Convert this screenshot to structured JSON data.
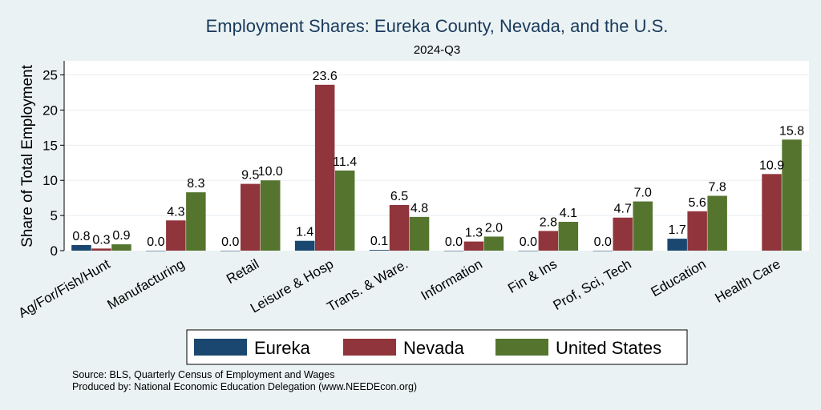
{
  "chart_data": {
    "type": "bar",
    "title": "Employment Shares: Eureka County, Nevada, and the U.S.",
    "subtitle": "2024-Q3",
    "xlabel": "",
    "ylabel": "Share of Total Employment",
    "ylim": [
      0,
      27
    ],
    "yticks": [
      0,
      5,
      10,
      15,
      20,
      25
    ],
    "grid": true,
    "legend_position": "bottom",
    "categories": [
      "Ag/For/Fish/Hunt",
      "Manufacturing",
      "Retail",
      "Leisure & Hosp",
      "Trans. & Ware.",
      "Information",
      "Fin & Ins",
      "Prof, Sci, Tech",
      "Education",
      "Health Care"
    ],
    "series": [
      {
        "name": "Eureka",
        "color": "#1a476f",
        "values": [
          0.8,
          0.0,
          0.0,
          1.4,
          0.1,
          0.0,
          0.0,
          0.0,
          1.7,
          null
        ],
        "labels": [
          "0.8",
          "0.0",
          "0.0",
          "1.4",
          "0.1",
          "0.0",
          "0.0",
          "0.0",
          "1.7",
          ""
        ]
      },
      {
        "name": "Nevada",
        "color": "#90353b",
        "values": [
          0.3,
          4.3,
          9.5,
          23.6,
          6.5,
          1.3,
          2.8,
          4.7,
          5.6,
          10.9
        ],
        "labels": [
          "0.3",
          "4.3",
          "9.5",
          "23.6",
          "6.5",
          "1.3",
          "2.8",
          "4.7",
          "5.6",
          "10.9"
        ]
      },
      {
        "name": "United States",
        "color": "#55752f",
        "values": [
          0.9,
          8.3,
          10.0,
          11.4,
          4.8,
          2.0,
          4.1,
          7.0,
          7.8,
          15.8
        ],
        "labels": [
          "0.9",
          "8.3",
          "10.0",
          "11.4",
          "4.8",
          "2.0",
          "4.1",
          "7.0",
          "7.8",
          "15.8"
        ]
      }
    ]
  },
  "notes": {
    "source": "Source: BLS, Quarterly Census of Employment and Wages",
    "produced": "Produced by: National Economic Education Delegation (www.NEEDEcon.org)"
  }
}
